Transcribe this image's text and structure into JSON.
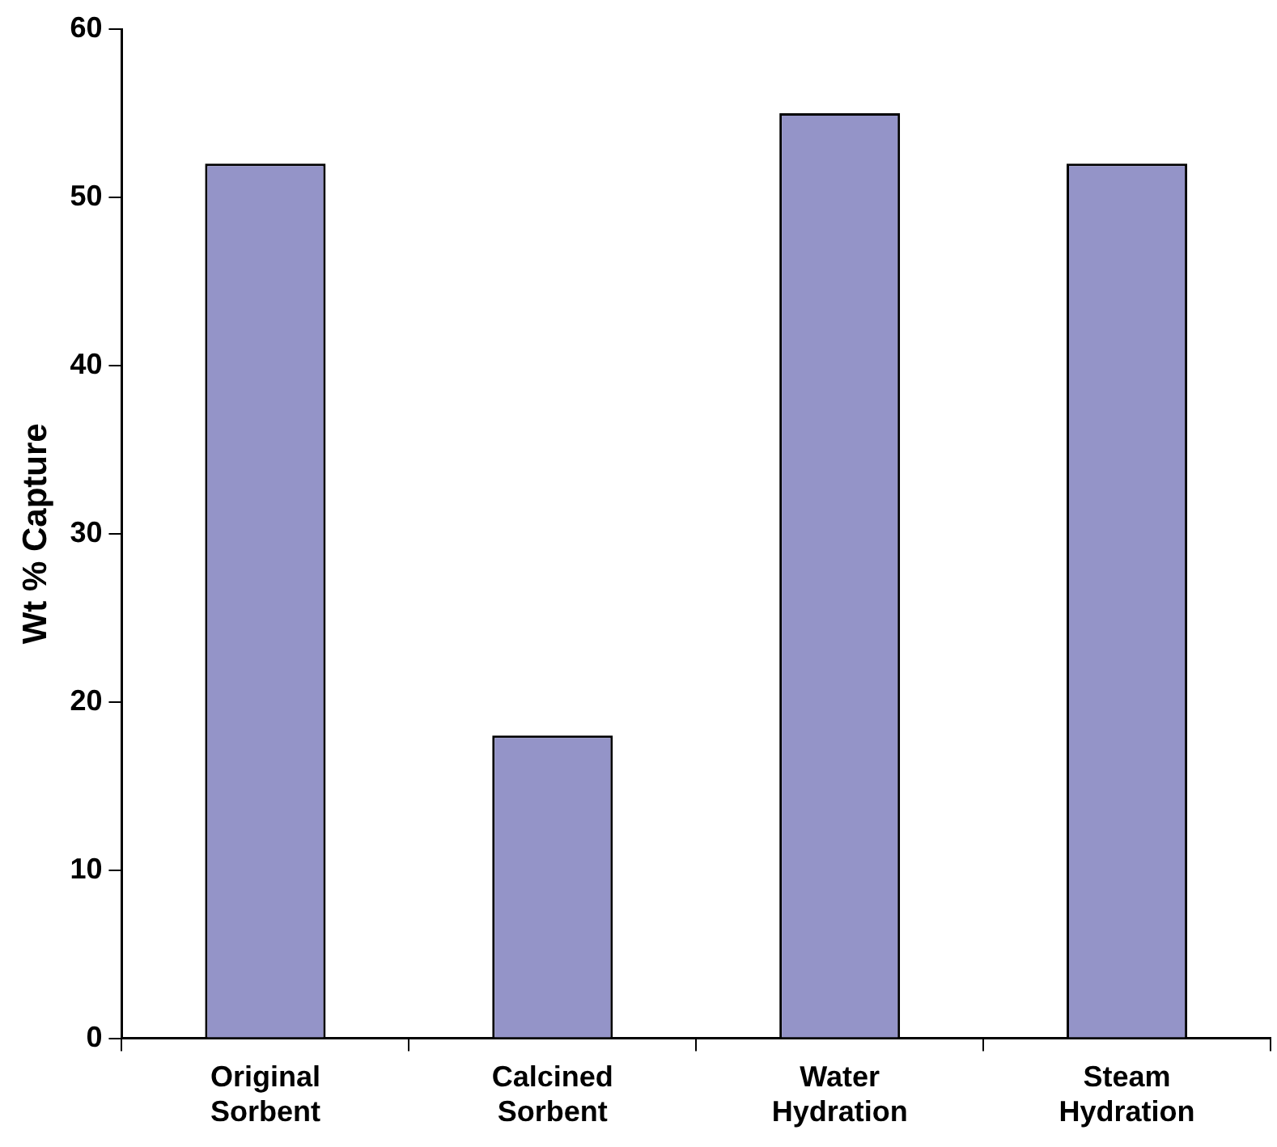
{
  "chart_data": {
    "type": "bar",
    "ylabel": "Wt % Capture",
    "categories": [
      "Original Sorbent",
      "Calcined Sorbent",
      "Water Hydration",
      "Steam Hydration"
    ],
    "values": [
      52,
      18,
      55,
      52
    ],
    "color": "#9494c8",
    "ylim": [
      0,
      60
    ],
    "yticks": [
      0,
      10,
      20,
      30,
      40,
      50,
      60
    ],
    "grid": false,
    "legend": false
  }
}
